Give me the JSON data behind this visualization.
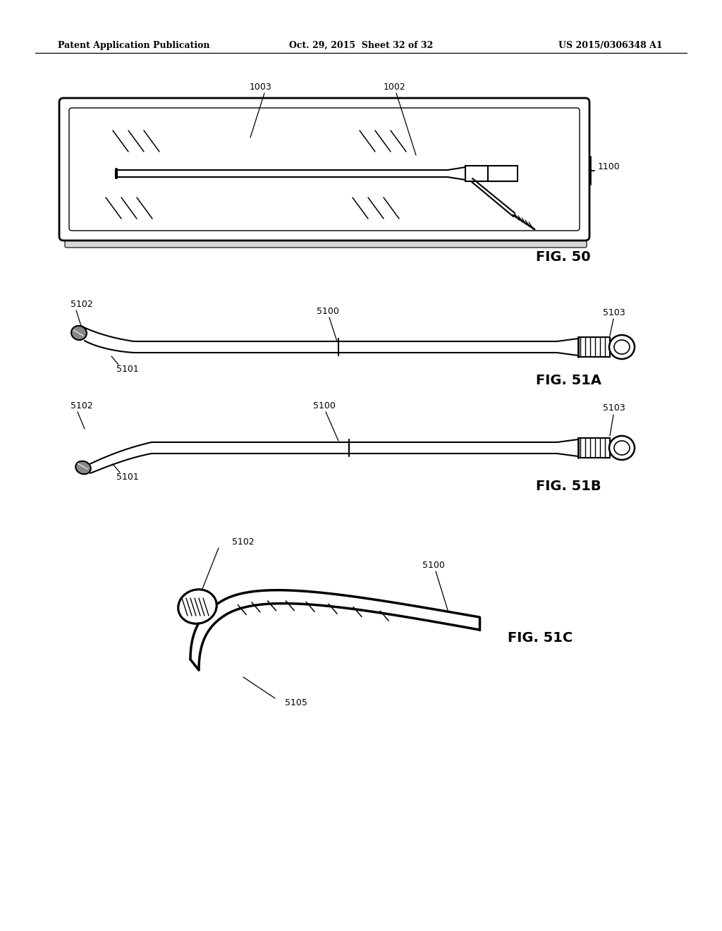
{
  "bg_color": "#ffffff",
  "line_color": "#000000",
  "header_left": "Patent Application Publication",
  "header_center": "Oct. 29, 2015  Sheet 32 of 32",
  "header_right": "US 2015/0306348 A1",
  "fig50_label": "FIG. 50",
  "fig51a_label": "FIG. 51A",
  "fig51b_label": "FIG. 51B",
  "fig51c_label": "FIG. 51C"
}
